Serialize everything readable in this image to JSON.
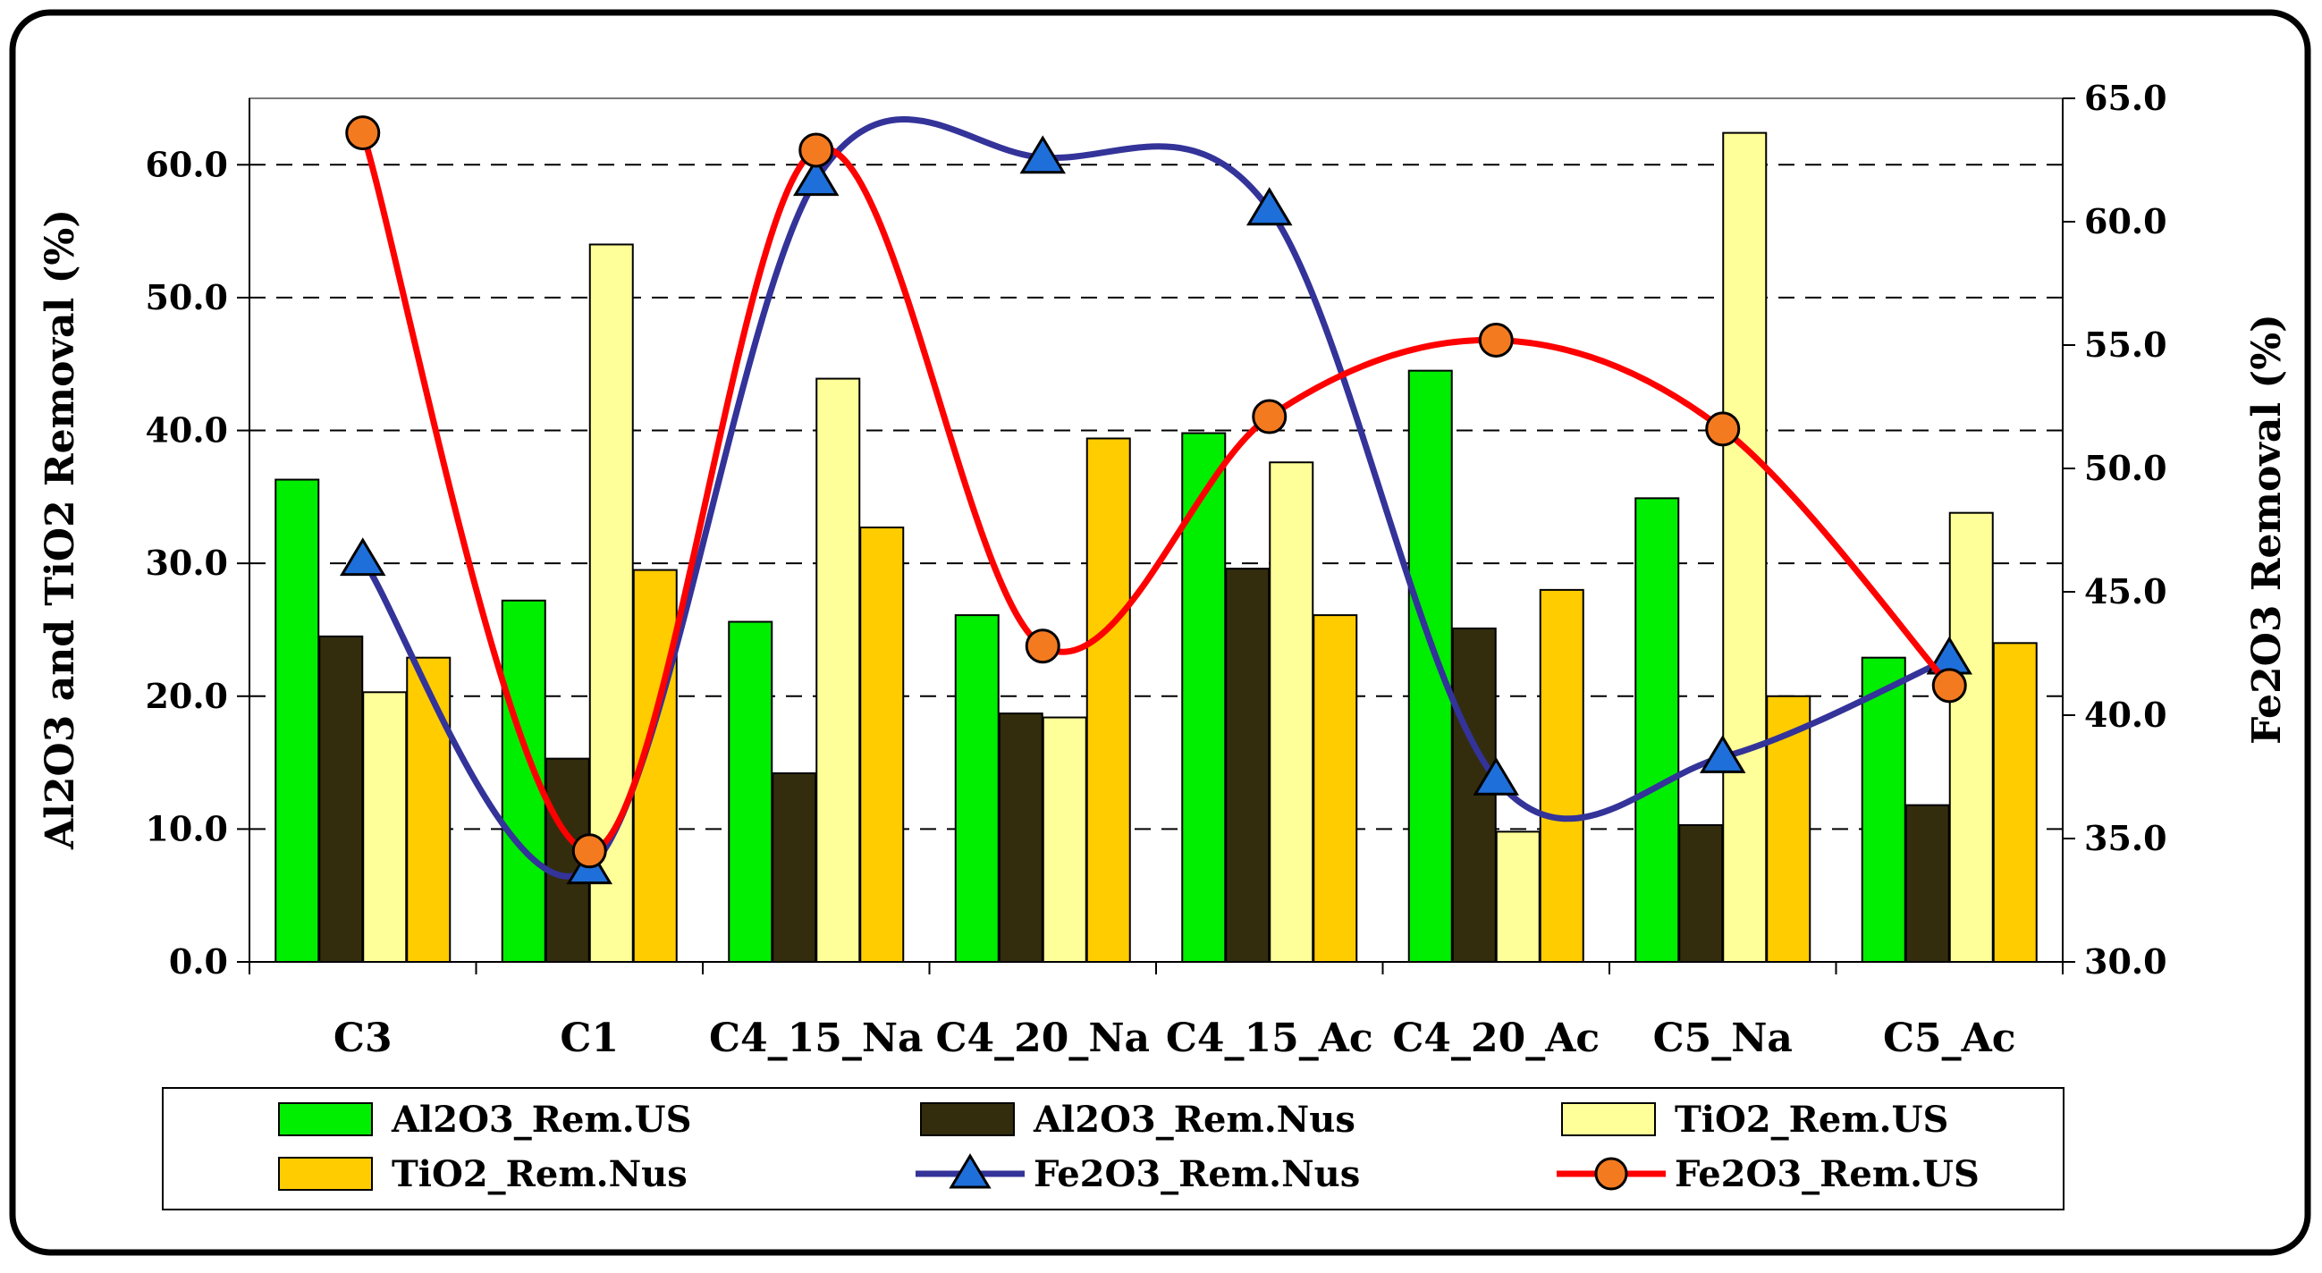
{
  "chart_data": {
    "type": "bar",
    "title": "",
    "categories": [
      "C3",
      "C1",
      "C4_15_Na",
      "C4_20_Na",
      "C4_15_Ac",
      "C4_20_Ac",
      "C5_Na",
      "C5_Ac"
    ],
    "ylabel": "Al2O3 and TiO2 Removal (%)",
    "ylim": [
      0,
      65
    ],
    "yticks": [
      "0.0",
      "10.0",
      "20.0",
      "30.0",
      "40.0",
      "50.0",
      "60.0"
    ],
    "y2label": "Fe2O3 Removal (%)",
    "y2lim": [
      30,
      65
    ],
    "y2ticks": [
      "30.0",
      "35.0",
      "40.0",
      "45.0",
      "50.0",
      "55.0",
      "60.0",
      "65.0"
    ],
    "gridlines": "dashed",
    "legend_position": "bottom",
    "bar_series": [
      {
        "name": "Al2O3_Rem.US",
        "color": "#00ee00",
        "values": [
          36.3,
          27.2,
          25.6,
          26.1,
          39.8,
          44.5,
          34.9,
          22.9
        ]
      },
      {
        "name": "Al2O3_Rem.Nus",
        "color": "#332d0d",
        "values": [
          24.5,
          15.3,
          14.2,
          18.7,
          29.6,
          25.1,
          10.3,
          11.8
        ]
      },
      {
        "name": "TiO2_Rem.US",
        "color": "#ffff99",
        "values": [
          20.3,
          54.0,
          43.9,
          18.4,
          37.6,
          9.8,
          62.4,
          33.8
        ]
      },
      {
        "name": "TiO2_Rem.Nus",
        "color": "#ffcc00",
        "values": [
          22.9,
          29.5,
          32.7,
          39.4,
          26.1,
          28.0,
          20.0,
          24.0
        ]
      }
    ],
    "line_series": [
      {
        "name": "Fe2O3_Rem.Nus",
        "axis": "right",
        "color": "#333399",
        "marker": "triangle",
        "marker_color": "#1e6fd9",
        "values": [
          46.3,
          33.8,
          61.7,
          62.6,
          60.5,
          37.4,
          38.3,
          42.3
        ]
      },
      {
        "name": "Fe2O3_Rem.US",
        "axis": "right",
        "color": "#ff0000",
        "marker": "circle",
        "marker_color": "#f47a20",
        "values": [
          63.6,
          34.5,
          62.9,
          42.8,
          52.1,
          55.2,
          51.6,
          41.2
        ]
      }
    ],
    "legend": [
      "Al2O3_Rem.US",
      "Al2O3_Rem.Nus",
      "TiO2_Rem.US",
      "TiO2_Rem.Nus",
      "Fe2O3_Rem.Nus",
      "Fe2O3_Rem.US"
    ]
  }
}
